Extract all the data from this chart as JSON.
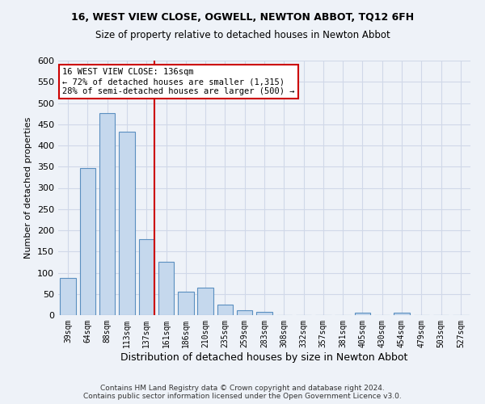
{
  "title": "16, WEST VIEW CLOSE, OGWELL, NEWTON ABBOT, TQ12 6FH",
  "subtitle": "Size of property relative to detached houses in Newton Abbot",
  "xlabel": "Distribution of detached houses by size in Newton Abbot",
  "ylabel": "Number of detached properties",
  "categories": [
    "39sqm",
    "64sqm",
    "88sqm",
    "113sqm",
    "137sqm",
    "161sqm",
    "186sqm",
    "210sqm",
    "235sqm",
    "259sqm",
    "283sqm",
    "308sqm",
    "332sqm",
    "357sqm",
    "381sqm",
    "405sqm",
    "430sqm",
    "454sqm",
    "479sqm",
    "503sqm",
    "527sqm"
  ],
  "values": [
    88,
    347,
    477,
    432,
    180,
    125,
    55,
    65,
    25,
    12,
    8,
    0,
    0,
    0,
    0,
    5,
    0,
    5,
    0,
    0,
    0
  ],
  "bar_color": "#c5d8ed",
  "bar_edge_color": "#5a8fc0",
  "highlight_index": 4,
  "highlight_line_color": "#cc0000",
  "annotation_text": "16 WEST VIEW CLOSE: 136sqm\n← 72% of detached houses are smaller (1,315)\n28% of semi-detached houses are larger (500) →",
  "annotation_box_color": "#ffffff",
  "annotation_box_edge_color": "#cc0000",
  "ylim": [
    0,
    600
  ],
  "yticks": [
    0,
    50,
    100,
    150,
    200,
    250,
    300,
    350,
    400,
    450,
    500,
    550,
    600
  ],
  "grid_color": "#d0d8e8",
  "background_color": "#eef2f8",
  "footer": "Contains HM Land Registry data © Crown copyright and database right 2024.\nContains public sector information licensed under the Open Government Licence v3.0."
}
